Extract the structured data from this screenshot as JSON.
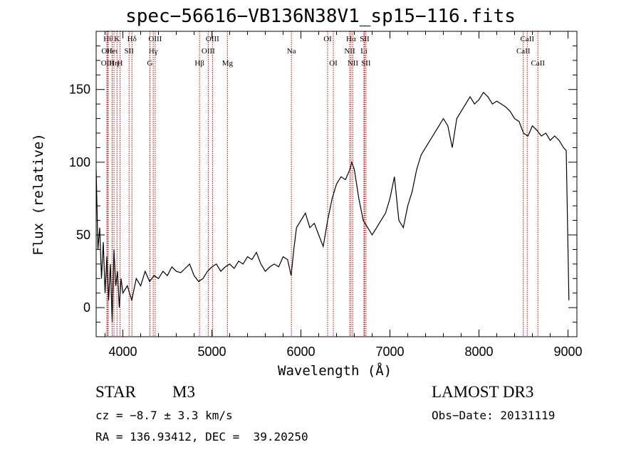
{
  "chart_data": {
    "type": "line",
    "title": "spec−56616−VB136N38V1_sp15−116.fits",
    "xlabel": "Wavelength (Å)",
    "ylabel": "Flux (relative)",
    "xlim": [
      3700,
      9100
    ],
    "ylim": [
      -20,
      190
    ],
    "xticks": [
      4000,
      5000,
      6000,
      7000,
      8000,
      9000
    ],
    "yticks": [
      0,
      50,
      100,
      150
    ],
    "series": [
      {
        "x": [
          3700,
          3720,
          3740,
          3760,
          3780,
          3800,
          3820,
          3840,
          3860,
          3880,
          3900,
          3920,
          3940,
          3960,
          3980,
          4000,
          4050,
          4100,
          4150,
          4200,
          4250,
          4300,
          4350,
          4400,
          4450,
          4500,
          4550,
          4600,
          4650,
          4700,
          4750,
          4800,
          4850,
          4900,
          4950,
          5000,
          5050,
          5100,
          5150,
          5200,
          5250,
          5300,
          5350,
          5400,
          5450,
          5500,
          5550,
          5600,
          5650,
          5700,
          5750,
          5800,
          5850,
          5890,
          5920,
          5950,
          6000,
          6050,
          6100,
          6150,
          6200,
          6250,
          6300,
          6350,
          6400,
          6450,
          6500,
          6550,
          6570,
          6600,
          6650,
          6700,
          6750,
          6800,
          6850,
          6900,
          6950,
          7000,
          7050,
          7100,
          7150,
          7200,
          7250,
          7300,
          7350,
          7400,
          7450,
          7500,
          7550,
          7600,
          7650,
          7700,
          7750,
          7800,
          7850,
          7900,
          7950,
          8000,
          8050,
          8100,
          8150,
          8200,
          8250,
          8300,
          8350,
          8400,
          8450,
          8500,
          8550,
          8600,
          8650,
          8700,
          8750,
          8800,
          8850,
          8900,
          8950,
          8980,
          9000,
          9010
        ],
        "values": [
          95,
          40,
          55,
          20,
          45,
          10,
          35,
          5,
          30,
          -10,
          40,
          15,
          25,
          0,
          20,
          10,
          15,
          5,
          20,
          15,
          25,
          18,
          22,
          20,
          25,
          22,
          28,
          25,
          24,
          27,
          30,
          22,
          18,
          20,
          25,
          28,
          30,
          25,
          28,
          30,
          27,
          32,
          30,
          35,
          33,
          38,
          30,
          25,
          28,
          30,
          28,
          35,
          33,
          22,
          40,
          55,
          60,
          65,
          55,
          58,
          50,
          42,
          60,
          75,
          85,
          90,
          88,
          95,
          100,
          95,
          75,
          60,
          55,
          50,
          55,
          60,
          65,
          75,
          90,
          60,
          55,
          70,
          80,
          95,
          105,
          110,
          115,
          120,
          125,
          130,
          125,
          110,
          130,
          135,
          140,
          145,
          140,
          143,
          148,
          145,
          140,
          142,
          140,
          138,
          135,
          130,
          128,
          120,
          118,
          125,
          122,
          118,
          120,
          115,
          118,
          115,
          110,
          108,
          40,
          5
        ]
      }
    ],
    "line_labels": [
      {
        "x": 3835,
        "text": "Hθ",
        "row": 1
      },
      {
        "x": 3820,
        "text": "OII",
        "row": 2
      },
      {
        "x": 3830,
        "text": "OIII",
        "row": 3
      },
      {
        "x": 3880,
        "text": "Heι",
        "row": 2
      },
      {
        "x": 3900,
        "text": "Hη",
        "row": 3
      },
      {
        "x": 3934,
        "text": "K",
        "row": 1
      },
      {
        "x": 3968,
        "text": "H",
        "row": 3
      },
      {
        "x": 4070,
        "text": "SII",
        "row": 2
      },
      {
        "x": 4102,
        "text": "Hδ",
        "row": 1
      },
      {
        "x": 4341,
        "text": "Hγ",
        "row": 2
      },
      {
        "x": 4363,
        "text": "OIII",
        "row": 1
      },
      {
        "x": 4304,
        "text": "G",
        "row": 3
      },
      {
        "x": 4861,
        "text": "Hβ",
        "row": 3
      },
      {
        "x": 4959,
        "text": "OIII",
        "row": 2
      },
      {
        "x": 5007,
        "text": "OIII",
        "row": 1
      },
      {
        "x": 5175,
        "text": "Mg",
        "row": 3
      },
      {
        "x": 5893,
        "text": "Na",
        "row": 2
      },
      {
        "x": 6300,
        "text": "OI",
        "row": 1
      },
      {
        "x": 6364,
        "text": "OI",
        "row": 3
      },
      {
        "x": 6563,
        "text": "Hα",
        "row": 1
      },
      {
        "x": 6548,
        "text": "NII",
        "row": 2
      },
      {
        "x": 6583,
        "text": "NII",
        "row": 3
      },
      {
        "x": 6708,
        "text": "Li",
        "row": 2
      },
      {
        "x": 6716,
        "text": "SII",
        "row": 1
      },
      {
        "x": 6731,
        "text": "SII",
        "row": 3
      },
      {
        "x": 8498,
        "text": "CaII",
        "row": 2
      },
      {
        "x": 8542,
        "text": "CaII",
        "row": 1
      },
      {
        "x": 8662,
        "text": "CaII",
        "row": 3
      }
    ],
    "line_color": "#cc0000",
    "grid": false
  },
  "info": {
    "class": "STAR",
    "subclass": "M3",
    "survey": "LAMOST DR3",
    "cz": "cz = −8.7 ± 3.3 km/s",
    "obs_date": "Obs−Date: 20131119",
    "radec": "RA = 136.93412, DEC =  39.20250"
  }
}
